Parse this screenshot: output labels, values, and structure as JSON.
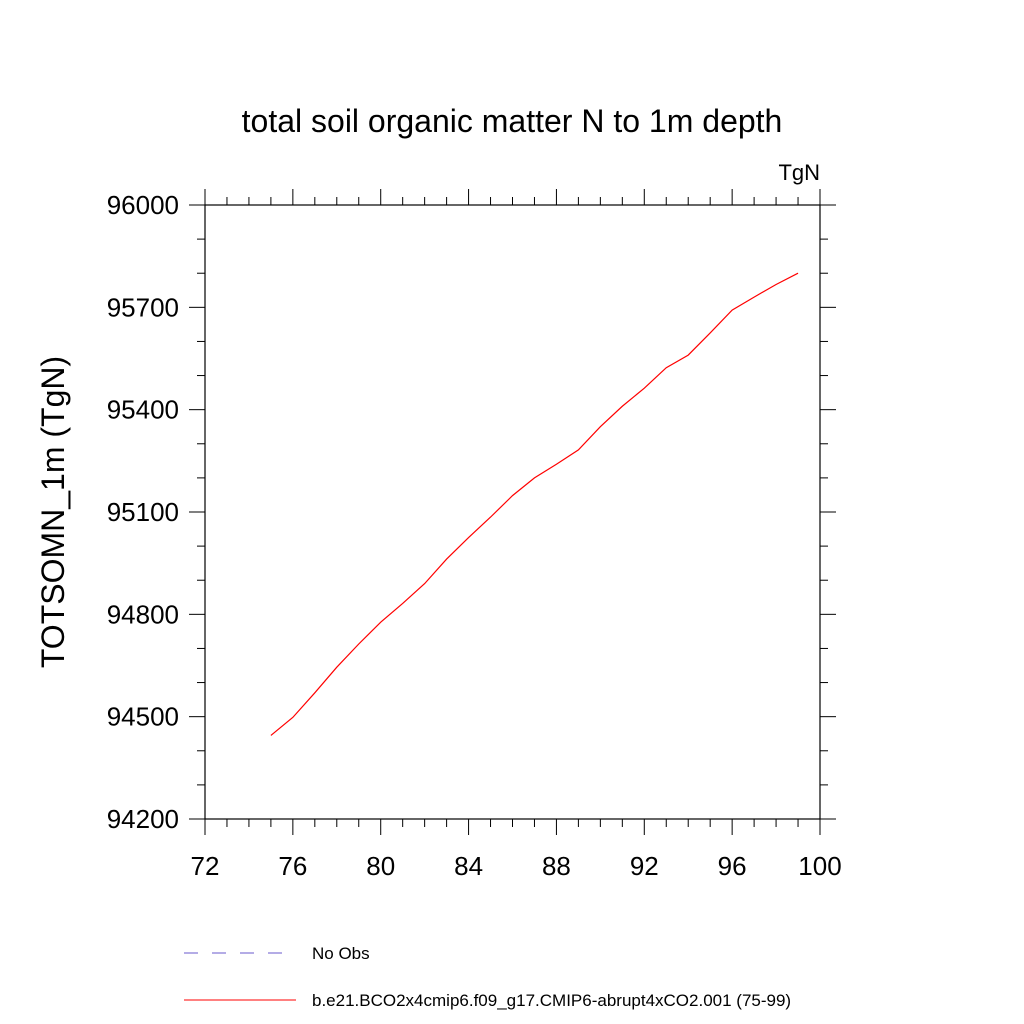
{
  "chart_data": {
    "type": "line",
    "title": "total soil organic matter N to 1m depth",
    "units_label": "TgN",
    "ylabel": "TOTSOMN_1m  (TgN)",
    "xlabel": "",
    "xlim": [
      72,
      100
    ],
    "ylim": [
      94200,
      96000
    ],
    "x_major_ticks": [
      72,
      76,
      80,
      84,
      88,
      92,
      96,
      100
    ],
    "x_minor_step": 1,
    "y_major_ticks": [
      94200,
      94500,
      94800,
      95100,
      95400,
      95700,
      96000
    ],
    "y_minor_step": 100,
    "grid": false,
    "series": [
      {
        "name": "b.e21.BCO2x4cmip6.f09_g17.CMIP6-abrupt4xCO2.001 (75-99)",
        "color": "#ff0000",
        "dash": "solid",
        "x": [
          75,
          76,
          77,
          78,
          79,
          80,
          81,
          82,
          83,
          84,
          85,
          86,
          87,
          88,
          89,
          90,
          91,
          92,
          93,
          94,
          95,
          96,
          97,
          98,
          99
        ],
        "values": [
          94445,
          94498,
          94570,
          94645,
          94713,
          94777,
          94832,
          94890,
          94962,
          95025,
          95085,
          95148,
          95200,
          95240,
          95282,
          95350,
          95410,
          95463,
          95523,
          95560,
          95625,
          95692,
          95730,
          95767,
          95800
        ]
      }
    ],
    "legend": {
      "placement": "bottom",
      "entries": [
        {
          "label": "No Obs",
          "color": "#6a5acd",
          "dash": "dashed"
        },
        {
          "label": "b.e21.BCO2x4cmip6.f09_g17.CMIP6-abrupt4xCO2.001 (75-99)",
          "color": "#ff0000",
          "dash": "solid"
        }
      ]
    }
  }
}
